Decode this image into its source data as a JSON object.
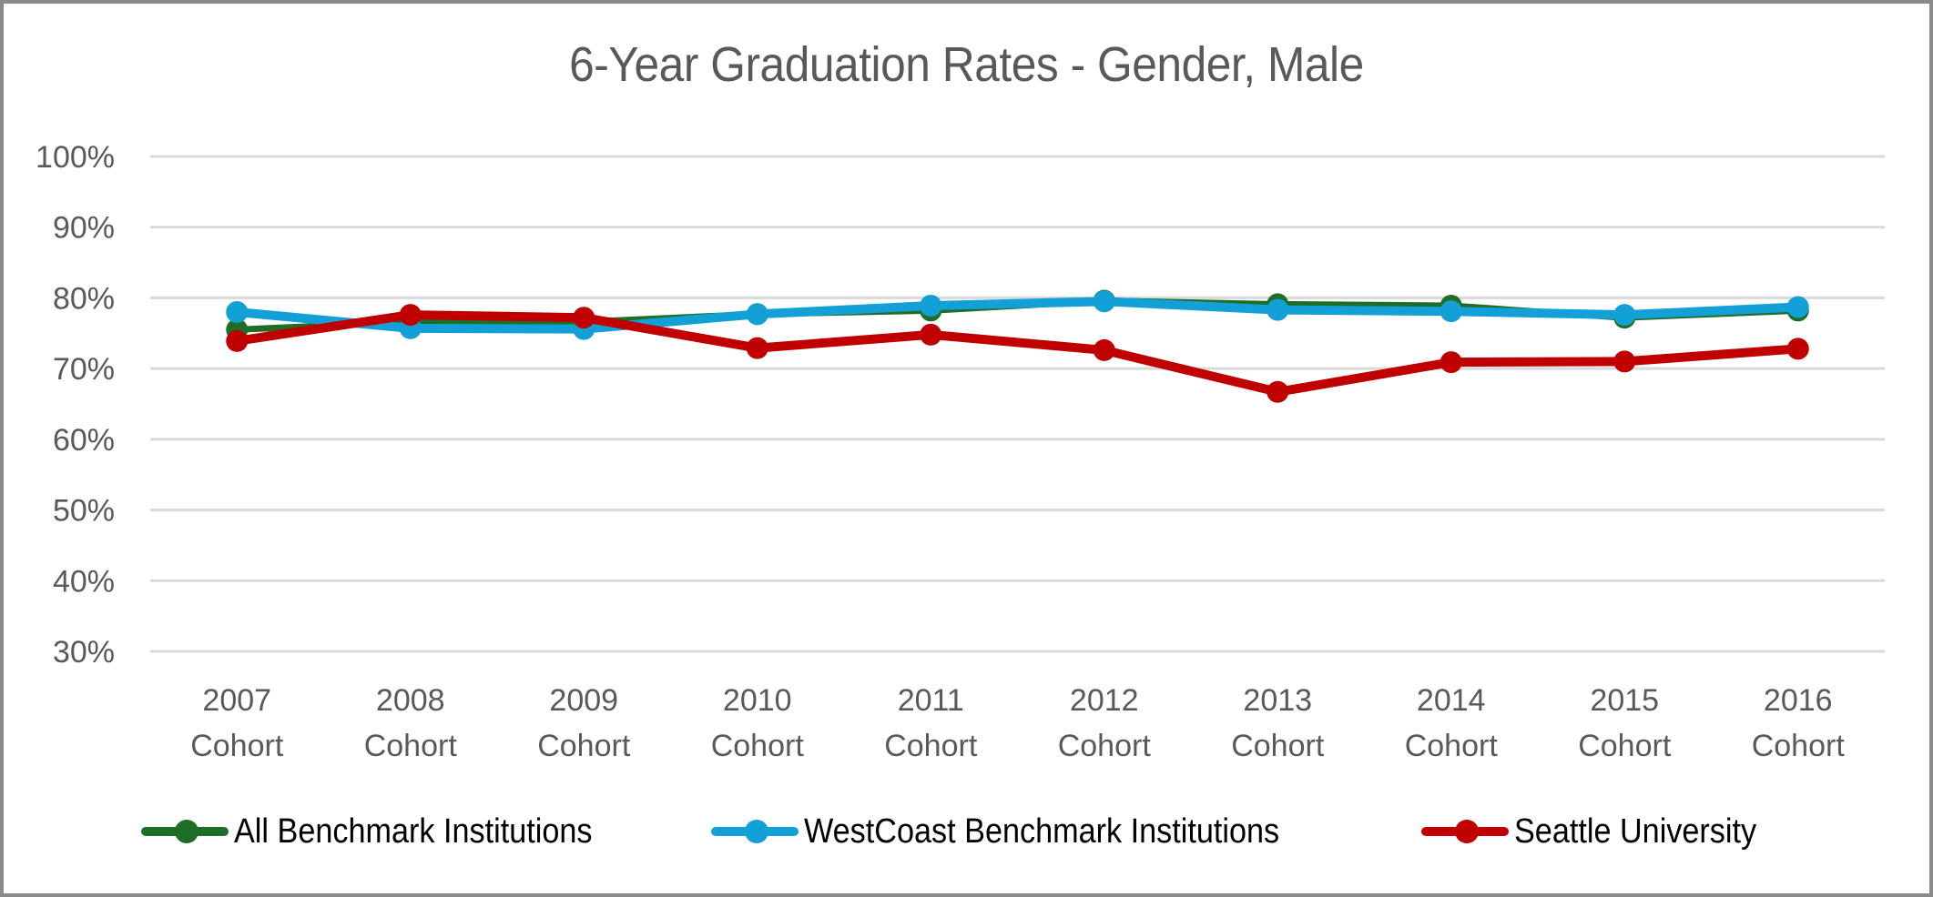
{
  "chart_data": {
    "type": "line",
    "title": "6-Year Graduation Rates - Gender, Male",
    "xlabel": "",
    "ylabel": "",
    "categories": [
      [
        "2007",
        "Cohort"
      ],
      [
        "2008",
        "Cohort"
      ],
      [
        "2009",
        "Cohort"
      ],
      [
        "2010",
        "Cohort"
      ],
      [
        "2011",
        "Cohort"
      ],
      [
        "2012",
        "Cohort"
      ],
      [
        "2013",
        "Cohort"
      ],
      [
        "2014",
        "Cohort"
      ],
      [
        "2015",
        "Cohort"
      ],
      [
        "2016",
        "Cohort"
      ]
    ],
    "ylim": [
      30,
      100
    ],
    "yticks": [
      30,
      40,
      50,
      60,
      70,
      80,
      90,
      100
    ],
    "ytick_labels": [
      "30%",
      "40%",
      "50%",
      "60%",
      "70%",
      "80%",
      "90%",
      "100%"
    ],
    "grid": true,
    "legend_position": "bottom",
    "series": [
      {
        "name": "All Benchmark Institutions",
        "color": "#1e6e28",
        "values": [
          75.5,
          76.6,
          76.6,
          77.7,
          78.2,
          79.6,
          79.1,
          78.9,
          77.2,
          78.2
        ]
      },
      {
        "name": "WestCoast Benchmark Institutions",
        "color": "#12a0d7",
        "values": [
          78.0,
          75.7,
          75.6,
          77.7,
          78.9,
          79.5,
          78.3,
          78.1,
          77.6,
          78.7
        ]
      },
      {
        "name": "Seattle University",
        "color": "#c00000",
        "values": [
          73.9,
          77.6,
          77.2,
          72.9,
          74.8,
          72.6,
          66.7,
          70.9,
          71.0,
          72.8
        ]
      }
    ]
  }
}
